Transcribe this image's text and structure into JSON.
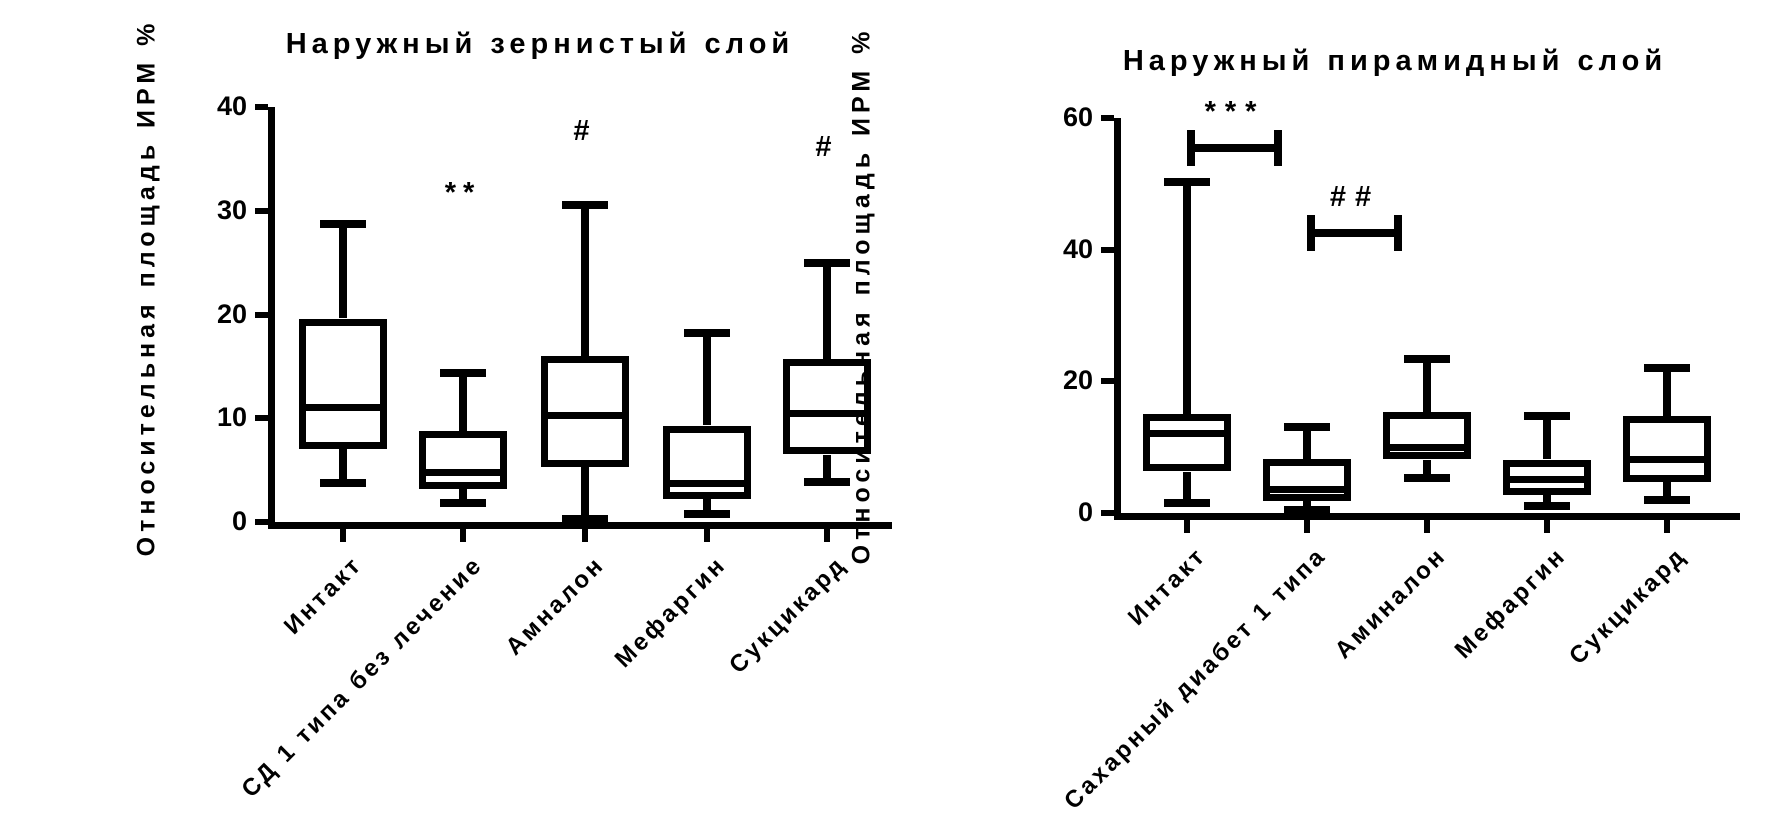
{
  "page": {
    "background": "#ffffff",
    "ink_color": "#000000"
  },
  "chart_data": [
    {
      "type": "box",
      "title": "Наружный зернистый слой",
      "ylabel": "Относительная площадь ИРМ %",
      "xlabel": "",
      "ylim": [
        0,
        40
      ],
      "yticks": [
        0,
        10,
        20,
        30,
        40
      ],
      "grid": false,
      "legend": "none",
      "categories": [
        "Интакт",
        "СД 1 типа без лечение",
        "Амналон",
        "Мефаргин",
        "Сукцикард"
      ],
      "boxes": [
        {
          "category": "Интакт",
          "min": 3.8,
          "q1": 7.1,
          "median": 11.0,
          "q3": 19.6,
          "max": 28.7
        },
        {
          "category": "СД 1 типа без лечение",
          "min": 1.8,
          "q1": 3.2,
          "median": 4.7,
          "q3": 8.8,
          "max": 14.4
        },
        {
          "category": "Амналон",
          "min": 0.3,
          "q1": 5.3,
          "median": 10.2,
          "q3": 16.0,
          "max": 30.6
        },
        {
          "category": "Мефаргин",
          "min": 0.8,
          "q1": 2.3,
          "median": 3.7,
          "q3": 9.3,
          "max": 18.2
        },
        {
          "category": "Сукцикард",
          "min": 3.9,
          "q1": 6.5,
          "median": 10.4,
          "q3": 15.7,
          "max": 25.0
        }
      ],
      "annotations": [
        {
          "group": 1,
          "label": "**",
          "y": 31.5
        },
        {
          "group": 2,
          "label": "#",
          "y": 37.5
        },
        {
          "group": 4,
          "label": "#",
          "y": 36.0
        }
      ],
      "brackets": []
    },
    {
      "type": "box",
      "title": "Наружный пирамидный слой",
      "ylabel": "Относительная площадь ИРМ %",
      "xlabel": "",
      "ylim": [
        0,
        60
      ],
      "yticks": [
        0,
        20,
        40,
        60
      ],
      "grid": false,
      "legend": "none",
      "categories": [
        "Интакт",
        "Сахарный диабет 1 типа",
        "Аминалон",
        "Мефаргин",
        "Сукцикард"
      ],
      "boxes": [
        {
          "category": "Интакт",
          "min": 1.5,
          "q1": 6.3,
          "median": 12.0,
          "q3": 15.0,
          "max": 50.3
        },
        {
          "category": "Сахарный диабет 1 типа",
          "min": 0.5,
          "q1": 1.8,
          "median": 3.5,
          "q3": 8.2,
          "max": 13.1
        },
        {
          "category": "Аминалон",
          "min": 5.3,
          "q1": 8.1,
          "median": 9.8,
          "q3": 15.3,
          "max": 23.4
        },
        {
          "category": "Мефаргин",
          "min": 1.1,
          "q1": 2.8,
          "median": 5.0,
          "q3": 8.1,
          "max": 14.7
        },
        {
          "category": "Сукцикард",
          "min": 2.0,
          "q1": 4.7,
          "median": 8.1,
          "q3": 14.7,
          "max": 22.1
        }
      ],
      "annotations": [],
      "brackets": [
        {
          "from": 0,
          "to": 1,
          "label": "***",
          "y": 55.5
        },
        {
          "from": 1,
          "to": 2,
          "label": "##",
          "y": 42.5
        }
      ]
    }
  ]
}
